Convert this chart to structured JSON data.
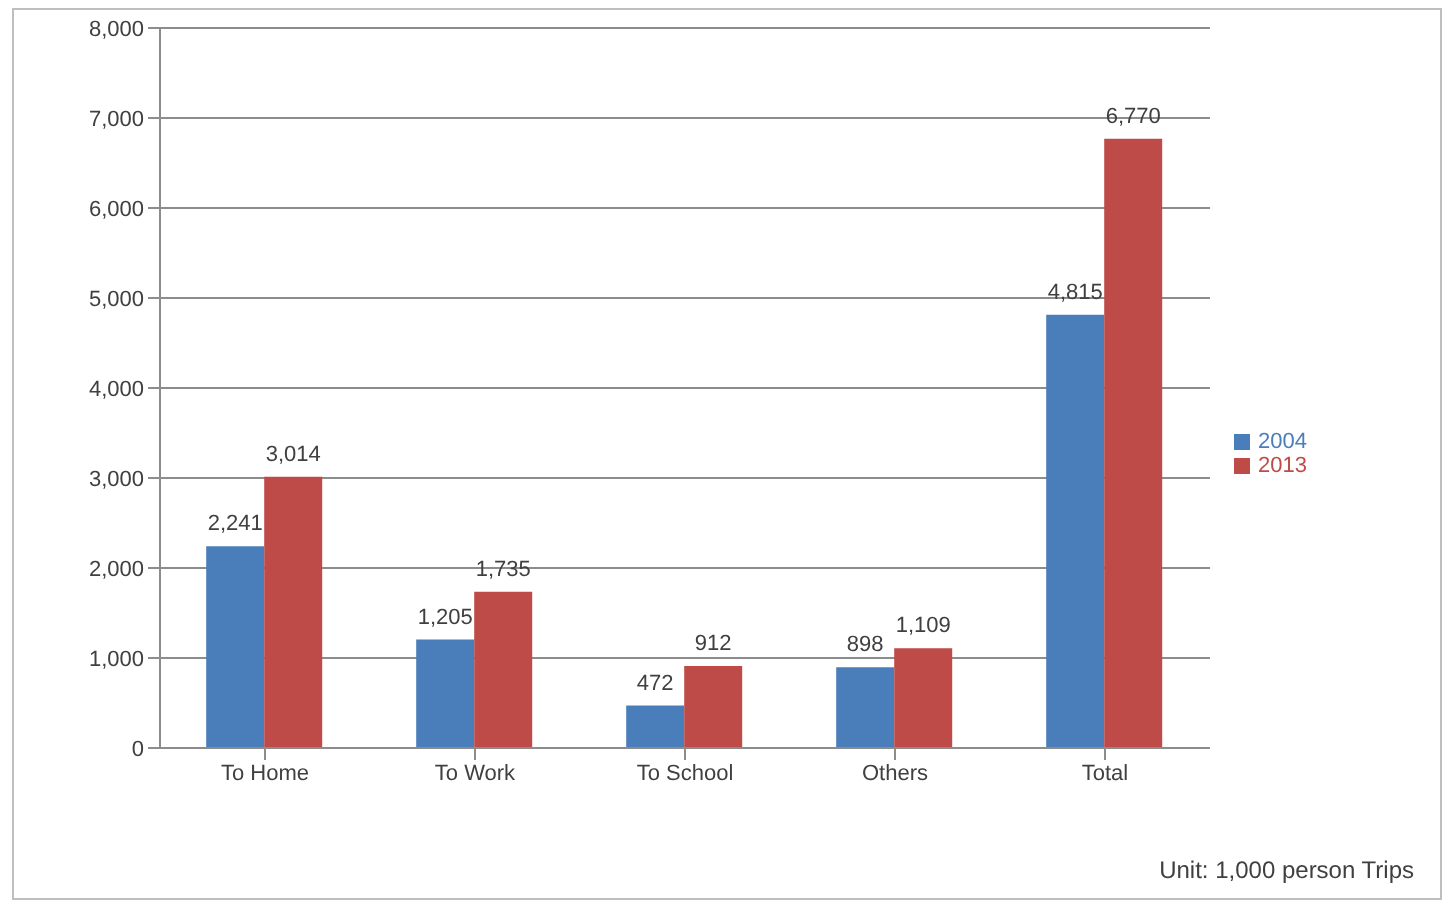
{
  "chart_data": {
    "type": "bar",
    "categories": [
      "To Home",
      "To Work",
      "To School",
      "Others",
      "Total"
    ],
    "series": [
      {
        "name": "2004",
        "color": "#4a7ebb",
        "values": [
          2241,
          1205,
          472,
          898,
          4815
        ],
        "value_labels": [
          "2,241",
          "1,205",
          "472",
          "898",
          "4,815"
        ]
      },
      {
        "name": "2013",
        "color": "#be4b48",
        "values": [
          3014,
          1735,
          912,
          1109,
          6770
        ],
        "value_labels": [
          "3,014",
          "1,735",
          "912",
          "1,109",
          "6,770"
        ]
      }
    ],
    "ylim": [
      0,
      8000
    ],
    "yticks": [
      0,
      {
        "value": 1000,
        "label": "1,000"
      },
      {
        "value": 2000,
        "label": "2,000"
      },
      {
        "value": 3000,
        "label": "3,000"
      },
      {
        "value": 4000,
        "label": "4,000"
      },
      {
        "value": 5000,
        "label": "5,000"
      },
      {
        "value": 6000,
        "label": "6,000"
      },
      {
        "value": 7000,
        "label": "7,000"
      },
      {
        "value": 8000,
        "label": "8,000"
      }
    ],
    "grid": "y",
    "legend": "right",
    "annotations": [
      "Unit: 1,000 person Trips"
    ]
  }
}
